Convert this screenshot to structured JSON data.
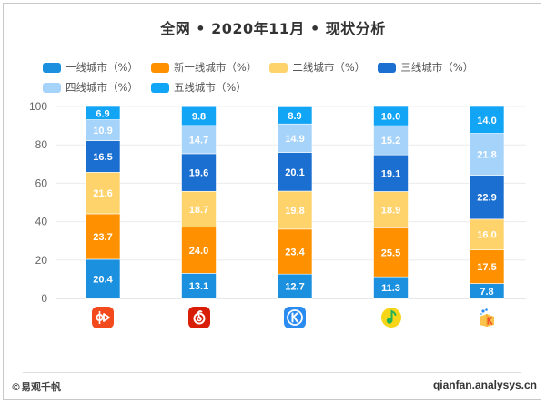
{
  "title": "全网 • 2020年11月 • 现状分析",
  "footer": {
    "copyright": "©易观千帆",
    "site": "qianfan.analysys.cn"
  },
  "apps": [
    {
      "icon": "kuaiyin-app-icon",
      "color": "#f24a1c"
    },
    {
      "icon": "netease-cloud-music-app-icon",
      "color": "#d81e06"
    },
    {
      "icon": "kugou-music-app-icon",
      "color": "#2a8cf0"
    },
    {
      "icon": "qq-music-app-icon",
      "color": "#f7d518"
    },
    {
      "icon": "kuwo-music-app-icon",
      "color": "#f9c24b"
    }
  ],
  "chart_data": {
    "type": "bar",
    "stacked": true,
    "title": "全网 • 2020年11月 • 现状分析",
    "xlabel": "",
    "ylabel": "",
    "ylim": [
      0,
      100
    ],
    "yticks": [
      0,
      20,
      40,
      60,
      80,
      100
    ],
    "grid": true,
    "legend_position": "top",
    "categories": [
      "app-1",
      "app-2",
      "app-3",
      "app-4",
      "app-5"
    ],
    "series": [
      {
        "name": "一线城市（%）",
        "color": "#1a90df",
        "label_color": "#ffffff",
        "values": [
          20.4,
          13.1,
          12.7,
          11.3,
          7.8
        ]
      },
      {
        "name": "新一线城市（%）",
        "color": "#ff9100",
        "label_color": "#ffffff",
        "values": [
          23.7,
          24.0,
          23.4,
          25.5,
          17.5
        ]
      },
      {
        "name": "二线城市（%）",
        "color": "#ffd36b",
        "label_color": "#ffffff",
        "values": [
          21.6,
          18.7,
          19.8,
          18.9,
          16.0
        ]
      },
      {
        "name": "三线城市（%）",
        "color": "#1b6fd0",
        "label_color": "#ffffff",
        "values": [
          16.5,
          19.6,
          20.1,
          19.1,
          22.9
        ]
      },
      {
        "name": "四线城市（%）",
        "color": "#a6d3fa",
        "label_color": "#ffffff",
        "values": [
          10.9,
          14.7,
          14.9,
          15.2,
          21.8
        ]
      },
      {
        "name": "五线城市（%）",
        "color": "#12a5f6",
        "label_color": "#ffffff",
        "values": [
          6.9,
          9.8,
          8.9,
          10.0,
          14.0
        ]
      }
    ]
  }
}
